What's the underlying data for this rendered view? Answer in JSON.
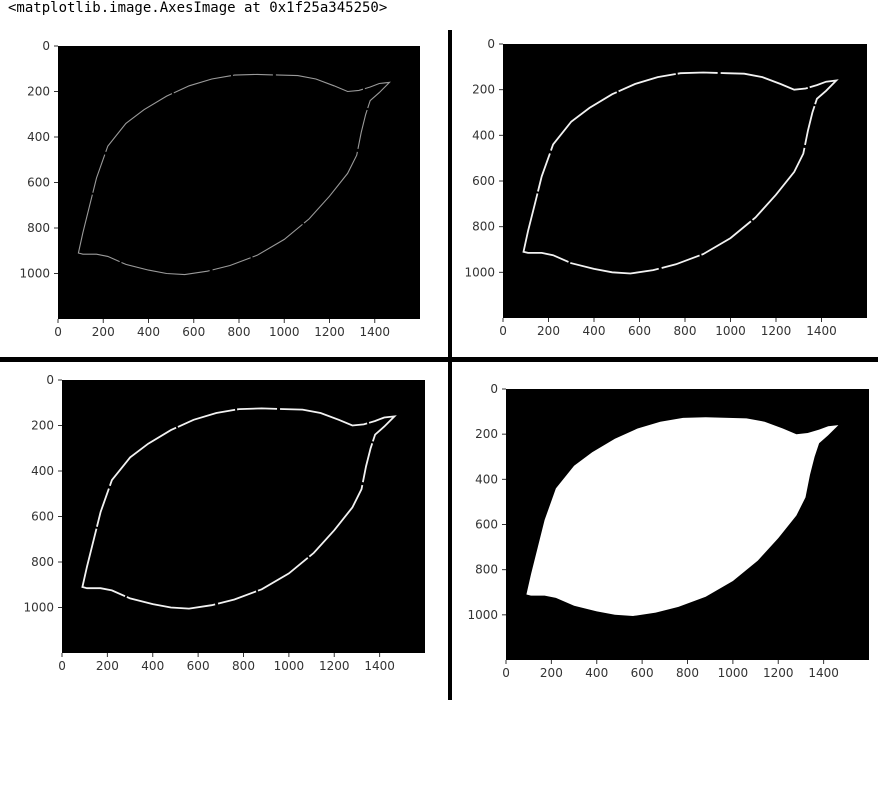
{
  "output_repr": "<matplotlib.image.AxesImage at 0x1f25a345250>",
  "x_ticks": [
    "0",
    "200",
    "400",
    "600",
    "800",
    "1000",
    "1200",
    "1400"
  ],
  "y_ticks": [
    "0",
    "200",
    "400",
    "600",
    "800",
    "1000"
  ],
  "colors": {
    "background": "#000000",
    "foreground": "#ffffff",
    "divider": "#000000"
  },
  "panels": [
    {
      "id": "top-left",
      "style": "edges-faint"
    },
    {
      "id": "top-right",
      "style": "edges"
    },
    {
      "id": "bottom-left",
      "style": "edges"
    },
    {
      "id": "bottom-right",
      "style": "filled-mask"
    }
  ],
  "chart_data": [
    {
      "type": "image",
      "xlim": [
        0,
        1600
      ],
      "ylim": [
        1200,
        0
      ],
      "x_ticks": [
        0,
        200,
        400,
        600,
        800,
        1000,
        1200,
        1400
      ],
      "y_ticks": [
        0,
        200,
        400,
        600,
        800,
        1000
      ],
      "content": "faint leaf contour"
    },
    {
      "type": "image",
      "xlim": [
        0,
        1600
      ],
      "ylim": [
        1200,
        0
      ],
      "x_ticks": [
        0,
        200,
        400,
        600,
        800,
        1000,
        1200,
        1400
      ],
      "y_ticks": [
        0,
        200,
        400,
        600,
        800,
        1000
      ],
      "content": "leaf contour"
    },
    {
      "type": "image",
      "xlim": [
        0,
        1600
      ],
      "ylim": [
        1200,
        0
      ],
      "x_ticks": [
        0,
        200,
        400,
        600,
        800,
        1000,
        1200,
        1400
      ],
      "y_ticks": [
        0,
        200,
        400,
        600,
        800,
        1000
      ],
      "content": "leaf contour"
    },
    {
      "type": "image",
      "xlim": [
        0,
        1600
      ],
      "ylim": [
        1200,
        0
      ],
      "x_ticks": [
        0,
        200,
        400,
        600,
        800,
        1000,
        1200,
        1400
      ],
      "y_ticks": [
        0,
        200,
        400,
        600,
        800,
        1000
      ],
      "content": "filled leaf mask"
    }
  ]
}
